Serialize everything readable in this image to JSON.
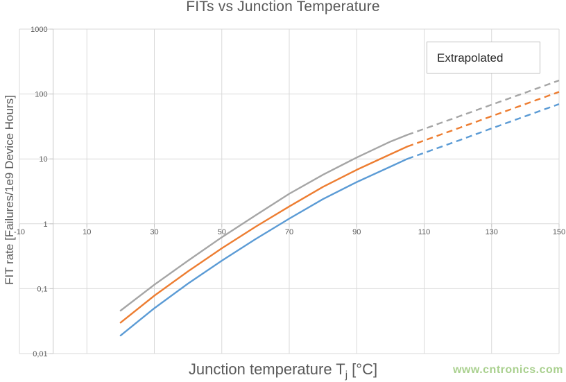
{
  "title": "FITs vs Junction Temperature",
  "legend": {
    "label": "Extrapolated"
  },
  "watermark": {
    "text": "www.cntronics.com",
    "color": "#a9d08e"
  },
  "axes": {
    "x_title_pre": "Junction temperature T",
    "x_title_sub": "j",
    "x_title_post": " [°C]",
    "y_title": "FIT rate [Failures/1e9 Device Hours]"
  },
  "chart_data": {
    "type": "line",
    "title": "FITs vs Junction Temperature",
    "xlabel": "Junction temperature Tj [°C]",
    "ylabel": "FIT rate [Failures/1e9 Device Hours]",
    "annotation": "Extrapolated",
    "grid": true,
    "colors": {
      "gridline": "#d9d9d9",
      "axis_line": "#c6c6c6",
      "tick_text": "#595959"
    },
    "x_axis": {
      "min": -10,
      "max": 150,
      "tick_values": [
        -10,
        10,
        30,
        50,
        70,
        90,
        110,
        130,
        150
      ],
      "tick_labels": [
        "-10",
        "10",
        "30",
        "50",
        "70",
        "90",
        "110",
        "130",
        "150"
      ],
      "axis_line_at": 0
    },
    "y_axis": {
      "scale": "log",
      "min": 0.01,
      "max": 1000,
      "tick_values": [
        1000,
        100,
        10,
        1,
        0.1,
        0.01
      ],
      "tick_labels": [
        "1000",
        "100",
        "10",
        "1",
        "0,1",
        "0,01"
      ],
      "axis_crosses_at": 1
    },
    "extrapolated_from_x": 105,
    "x": [
      20,
      30,
      40,
      50,
      60,
      70,
      80,
      90,
      100,
      105,
      110,
      120,
      130,
      140,
      150
    ],
    "series": [
      {
        "name": "upper-gray",
        "color": "#a5a5a5",
        "values": [
          0.046,
          0.115,
          0.27,
          0.62,
          1.35,
          2.9,
          5.7,
          10.5,
          18.5,
          23.5,
          29,
          44.5,
          68.5,
          105,
          162
        ]
      },
      {
        "name": "middle-orange",
        "color": "#ed7d31",
        "values": [
          0.03,
          0.078,
          0.185,
          0.42,
          0.9,
          1.85,
          3.7,
          6.8,
          11.8,
          15.5,
          19.2,
          29.5,
          45.5,
          70,
          108
        ]
      },
      {
        "name": "lower-blue",
        "color": "#5b9bd5",
        "values": [
          0.019,
          0.05,
          0.12,
          0.27,
          0.58,
          1.2,
          2.4,
          4.4,
          7.6,
          10,
          12.4,
          19,
          29.5,
          45.5,
          70
        ]
      }
    ]
  }
}
